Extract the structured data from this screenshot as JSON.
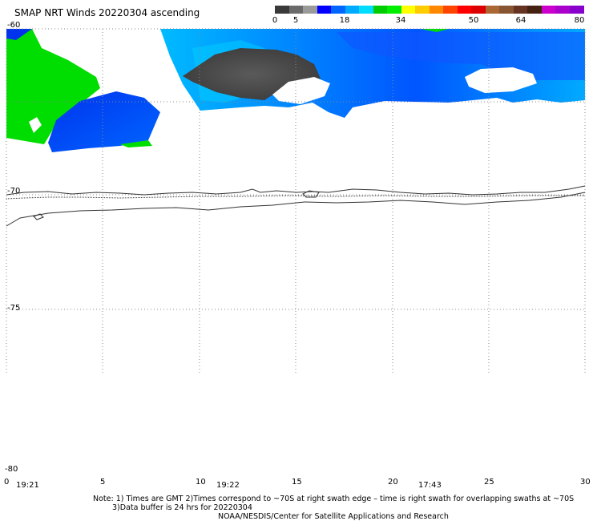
{
  "title": "SMAP NRT Winds 20220304 ascending",
  "colorbar": {
    "labels": [
      "0",
      "5",
      "18",
      "34",
      "50",
      "64",
      "80"
    ],
    "segments": [
      "#3a3a3a",
      "#6a6a6a",
      "#9a9a9a",
      "#0000ff",
      "#0066ff",
      "#00aaff",
      "#00ddff",
      "#00cc00",
      "#00ee00",
      "#ffff00",
      "#ffcc00",
      "#ff8800",
      "#ff4400",
      "#ff0000",
      "#dd0000",
      "#aa6633",
      "#885533",
      "#663322",
      "#442211",
      "#cc00cc",
      "#aa00cc",
      "#8800cc"
    ]
  },
  "map": {
    "lat_labels": [
      "-60",
      "-70",
      "-75",
      "-80"
    ],
    "lon_labels": [
      "0",
      "5",
      "10",
      "15",
      "20",
      "25",
      "30"
    ],
    "time_labels": [
      "19:21",
      "19:22",
      "17:43"
    ],
    "colors": {
      "land_white": "#ffffff",
      "wind_green": "#00dd00",
      "wind_blue": "#0033ee",
      "wind_light_blue": "#00aaff",
      "wind_dark_gray": "#4a4a4a",
      "coast": "#333333",
      "grid": "#888888"
    }
  },
  "footer": {
    "note_line1": "Note: 1) Times are GMT 2)Times correspond to ~70S at right swath edge – time is right swath for overlapping swaths at ~70S",
    "note_line2": "3)Data buffer is 24 hrs for 20220304",
    "credit": "NOAA/NESDIS/Center for Satellite Applications and Research"
  }
}
